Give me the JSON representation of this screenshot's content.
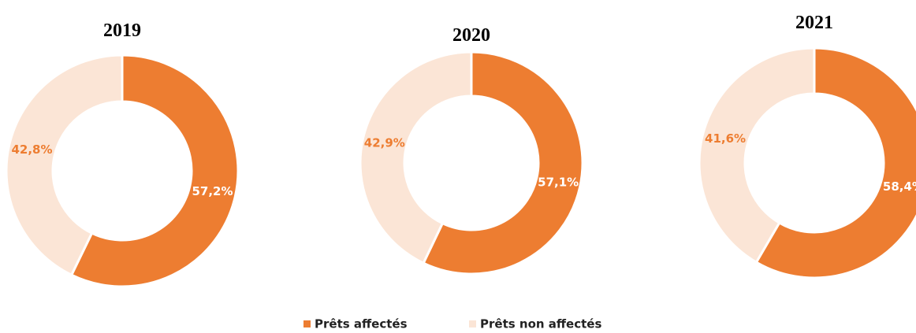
{
  "chart_data": [
    {
      "type": "donut",
      "title": "2019",
      "categories": [
        "Prêts affectés",
        "Prêts non affectés"
      ],
      "values": [
        57.2,
        42.8
      ],
      "value_labels": [
        "57,2%",
        "42,8%"
      ],
      "colors": [
        "#ED7D31",
        "#FBE5D6"
      ],
      "label_colors": [
        "#FFFFFF",
        "#ED7D31"
      ]
    },
    {
      "type": "donut",
      "title": "2020",
      "categories": [
        "Prêts affectés",
        "Prêts non affectés"
      ],
      "values": [
        57.1,
        42.9
      ],
      "value_labels": [
        "57,1%",
        "42,9%"
      ],
      "colors": [
        "#ED7D31",
        "#FBE5D6"
      ],
      "label_colors": [
        "#FFFFFF",
        "#ED7D31"
      ]
    },
    {
      "type": "donut",
      "title": "2021",
      "categories": [
        "Prêts affectés",
        "Prêts non affectés"
      ],
      "values": [
        58.4,
        41.6
      ],
      "value_labels": [
        "58,4%",
        "41,6%"
      ],
      "colors": [
        "#ED7D31",
        "#FBE5D6"
      ],
      "label_colors": [
        "#FFFFFF",
        "#ED7D31"
      ]
    }
  ]
}
